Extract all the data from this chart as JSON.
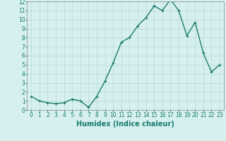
{
  "x": [
    0,
    1,
    2,
    3,
    4,
    5,
    6,
    7,
    8,
    9,
    10,
    11,
    12,
    13,
    14,
    15,
    16,
    17,
    18,
    19,
    20,
    21,
    22,
    23
  ],
  "y": [
    1.5,
    1.0,
    0.8,
    0.7,
    0.8,
    1.2,
    1.0,
    0.3,
    1.5,
    3.2,
    5.2,
    7.5,
    8.0,
    9.3,
    10.2,
    11.5,
    11.0,
    12.2,
    11.0,
    8.2,
    9.7,
    6.3,
    4.2,
    5.0
  ],
  "line_color": "#1a7a6e",
  "marker": "+",
  "marker_size": 3,
  "marker_linewidth": 0.8,
  "bg_color": "#d6f0ef",
  "grid_color": "#b8d8d5",
  "xlabel": "Humidex (Indice chaleur)",
  "xlim": [
    -0.5,
    23.5
  ],
  "ylim": [
    0,
    12
  ],
  "yticks": [
    0,
    1,
    2,
    3,
    4,
    5,
    6,
    7,
    8,
    9,
    10,
    11,
    12
  ],
  "xticks": [
    0,
    1,
    2,
    3,
    4,
    5,
    6,
    7,
    8,
    9,
    10,
    11,
    12,
    13,
    14,
    15,
    16,
    17,
    18,
    19,
    20,
    21,
    22,
    23
  ],
  "tick_fontsize": 5.5,
  "xlabel_fontsize": 7,
  "line_width": 1.0
}
